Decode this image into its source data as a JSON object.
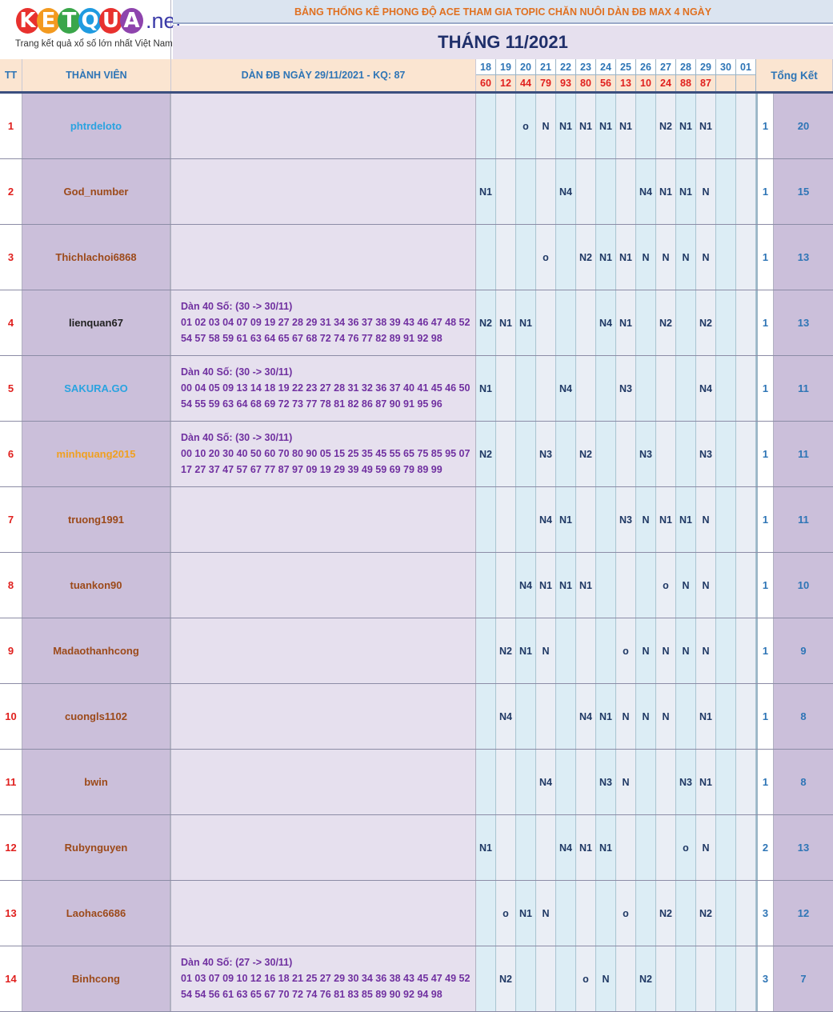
{
  "logo": {
    "letters": [
      "K",
      "E",
      "T",
      "Q",
      "U",
      "A"
    ],
    "letter_colors": [
      "#e8312e",
      "#f39a1f",
      "#3aa64a",
      "#1f9be0",
      "#e8312e",
      "#8e44ad"
    ],
    "suffix": ".net",
    "tagline": "Trang kết quả xổ số lớn nhất Việt Nam"
  },
  "banner": "BẢNG THỐNG KÊ PHONG ĐỘ ACE THAM GIA TOPIC CHĂN NUÔI DÀN ĐB MAX 4 NGÀY",
  "month_title": "THÁNG 11/2021",
  "headers": {
    "tt": "TT",
    "member": "THÀNH VIÊN",
    "dan": "DÀN ĐB NGÀY 29/11/2021 - KQ: 87",
    "summary": "Tổng Kết"
  },
  "days": [
    "18",
    "19",
    "20",
    "21",
    "22",
    "23",
    "24",
    "25",
    "26",
    "27",
    "28",
    "29",
    "30",
    "01"
  ],
  "results": [
    "60",
    "12",
    "44",
    "79",
    "93",
    "80",
    "56",
    "13",
    "10",
    "24",
    "88",
    "87",
    "",
    ""
  ],
  "colors": {
    "member_default": "#9c4a1a",
    "member_blue": "#2aa3e0",
    "member_orange": "#f0a020",
    "member_black": "#222222"
  },
  "rows": [
    {
      "tt": "1",
      "name": "phtrdeloto",
      "color": "#2aa3e0",
      "dan": [],
      "marks": [
        "",
        "",
        "o",
        "N",
        "N1",
        "N1",
        "N1",
        "N1",
        "",
        "N2",
        "N1",
        "N1",
        "",
        ""
      ],
      "col1": "1",
      "total": "20"
    },
    {
      "tt": "2",
      "name": "God_number",
      "color": "#9c4a1a",
      "dan": [],
      "marks": [
        "N1",
        "",
        "",
        "",
        "N4",
        "",
        "",
        "",
        "N4",
        "N1",
        "N1",
        "N",
        "",
        ""
      ],
      "col1": "1",
      "total": "15"
    },
    {
      "tt": "3",
      "name": "Thichlachoi6868",
      "color": "#9c4a1a",
      "dan": [],
      "marks": [
        "",
        "",
        "",
        "o",
        "",
        "N2",
        "N1",
        "N1",
        "N",
        "N",
        "N",
        "N",
        "",
        ""
      ],
      "col1": "1",
      "total": "13"
    },
    {
      "tt": "4",
      "name": "lienquan67",
      "color": "#222222",
      "dan": [
        "Dàn 40 Số: (30 -> 30/11)",
        "01 02 03 04 07 09 19 27 28 29 31 34 36 37 38 39 43 46 47 48 52",
        "54 57 58 59 61 63 64 65 67 68 72 74 76 77 82 89 91 92 98"
      ],
      "marks": [
        "N2",
        "N1",
        "N1",
        "",
        "",
        "",
        "N4",
        "N1",
        "",
        "N2",
        "",
        "N2",
        "",
        ""
      ],
      "col1": "1",
      "total": "13"
    },
    {
      "tt": "5",
      "name": "SAKURA.GO",
      "color": "#2aa3e0",
      "dan": [
        "Dàn 40 Số: (30 -> 30/11)",
        "00 04 05 09 13 14 18 19 22 23 27 28 31 32 36 37 40 41 45 46 50",
        "54 55 59 63 64 68 69 72 73 77 78 81 82 86 87 90 91 95 96"
      ],
      "marks": [
        "N1",
        "",
        "",
        "",
        "N4",
        "",
        "",
        "N3",
        "",
        "",
        "",
        "N4",
        "",
        ""
      ],
      "col1": "1",
      "total": "11"
    },
    {
      "tt": "6",
      "name": "minhquang2015",
      "color": "#f0a020",
      "dan": [
        "Dàn 40 Số: (30 -> 30/11)",
        "00 10 20 30 40 50 60 70 80 90 05 15 25 35 45 55 65 75 85 95 07",
        "17 27 37 47 57 67 77 87 97 09 19 29 39 49 59 69 79 89 99"
      ],
      "marks": [
        "N2",
        "",
        "",
        "N3",
        "",
        "N2",
        "",
        "",
        "N3",
        "",
        "",
        "N3",
        "",
        ""
      ],
      "col1": "1",
      "total": "11"
    },
    {
      "tt": "7",
      "name": "truong1991",
      "color": "#9c4a1a",
      "dan": [],
      "marks": [
        "",
        "",
        "",
        "N4",
        "N1",
        "",
        "",
        "N3",
        "N",
        "N1",
        "N1",
        "N",
        "",
        ""
      ],
      "col1": "1",
      "total": "11"
    },
    {
      "tt": "8",
      "name": "tuankon90",
      "color": "#9c4a1a",
      "dan": [],
      "marks": [
        "",
        "",
        "N4",
        "N1",
        "N1",
        "N1",
        "",
        "",
        "",
        "o",
        "N",
        "N",
        "",
        ""
      ],
      "col1": "1",
      "total": "10"
    },
    {
      "tt": "9",
      "name": "Madaothanhcong",
      "color": "#9c4a1a",
      "dan": [],
      "marks": [
        "",
        "N2",
        "N1",
        "N",
        "",
        "",
        "",
        "o",
        "N",
        "N",
        "N",
        "N",
        "",
        ""
      ],
      "col1": "1",
      "total": "9"
    },
    {
      "tt": "10",
      "name": "cuongls1102",
      "color": "#9c4a1a",
      "dan": [],
      "marks": [
        "",
        "N4",
        "",
        "",
        "",
        "N4",
        "N1",
        "N",
        "N",
        "N",
        "",
        "N1",
        "",
        ""
      ],
      "col1": "1",
      "total": "8"
    },
    {
      "tt": "11",
      "name": "bwin",
      "color": "#9c4a1a",
      "dan": [],
      "marks": [
        "",
        "",
        "",
        "N4",
        "",
        "",
        "N3",
        "N",
        "",
        "",
        "N3",
        "N1",
        "",
        ""
      ],
      "col1": "1",
      "total": "8"
    },
    {
      "tt": "12",
      "name": "Rubynguyen",
      "color": "#9c4a1a",
      "dan": [],
      "marks": [
        "N1",
        "",
        "",
        "",
        "N4",
        "N1",
        "N1",
        "",
        "",
        "",
        "o",
        "N",
        "",
        ""
      ],
      "col1": "2",
      "total": "13"
    },
    {
      "tt": "13",
      "name": "Laohac6686",
      "color": "#9c4a1a",
      "dan": [],
      "marks": [
        "",
        "o",
        "N1",
        "N",
        "",
        "",
        "",
        "o",
        "",
        "N2",
        "",
        "N2",
        "",
        ""
      ],
      "col1": "3",
      "total": "12"
    },
    {
      "tt": "14",
      "name": "Binhcong",
      "color": "#9c4a1a",
      "dan": [
        "Dàn 40 Số: (27 -> 30/11)",
        "01 03 07 09 10 12 16 18 21 25 27 29 30 34 36 38 43 45 47 49 52",
        "54 54 56 61 63 65 67 70 72 74 76 81 83 85 89 90 92 94 98"
      ],
      "marks": [
        "",
        "N2",
        "",
        "",
        "",
        "o",
        "N",
        "",
        "N2",
        "",
        "",
        "",
        "",
        ""
      ],
      "col1": "3",
      "total": "7"
    }
  ]
}
